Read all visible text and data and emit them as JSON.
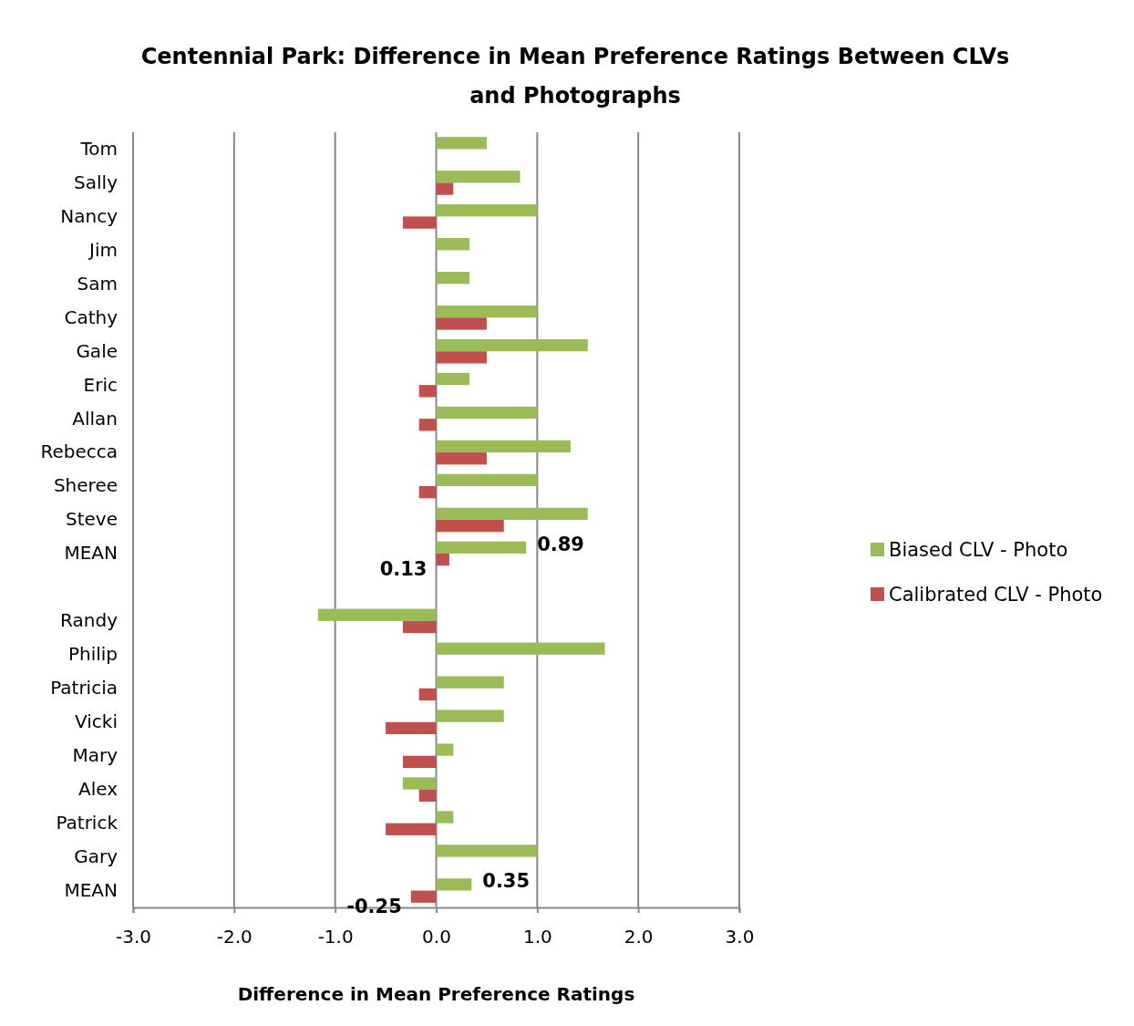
{
  "chart_data": {
    "type": "bar",
    "orientation": "horizontal",
    "title": "Centennial Park: Difference in Mean Preference Ratings Between CLVs and Photographs",
    "xlabel": "Difference in Mean Preference Ratings",
    "categories": [
      "Tom",
      "Sally",
      "Nancy",
      "Jim",
      "Sam",
      "Cathy",
      "Gale",
      "Eric",
      "Allan",
      "Rebecca",
      "Sheree",
      "Steve",
      "MEAN",
      null,
      "Randy",
      "Philip",
      "Patricia",
      "Vicki",
      "Mary",
      "Alex",
      "Patrick",
      "Gary",
      "MEAN"
    ],
    "series": [
      {
        "name": "Biased CLV - Photo",
        "color": "#9bbb59",
        "values": [
          0.5,
          0.83,
          1.0,
          0.33,
          0.33,
          1.0,
          1.5,
          0.33,
          1.0,
          1.33,
          1.0,
          1.5,
          0.89,
          null,
          -1.17,
          1.67,
          0.67,
          0.67,
          0.17,
          -0.33,
          0.17,
          1.0,
          0.35
        ],
        "value_labels": [
          null,
          null,
          null,
          null,
          null,
          null,
          null,
          null,
          null,
          null,
          null,
          null,
          "0.89",
          null,
          null,
          null,
          null,
          null,
          null,
          null,
          null,
          null,
          "0.35"
        ]
      },
      {
        "name": "Calibrated CLV - Photo",
        "color": "#c0504d",
        "values": [
          0,
          0.17,
          -0.33,
          0,
          0,
          0.5,
          0.5,
          -0.17,
          -0.17,
          0.5,
          -0.17,
          0.67,
          0.13,
          null,
          -0.33,
          0,
          -0.17,
          -0.5,
          -0.33,
          -0.17,
          -0.5,
          0,
          -0.25
        ],
        "value_labels": [
          null,
          null,
          null,
          null,
          null,
          null,
          null,
          null,
          null,
          null,
          null,
          null,
          "0.13",
          null,
          null,
          null,
          null,
          null,
          null,
          null,
          null,
          null,
          "-0.25"
        ]
      }
    ],
    "xlim": [
      -3,
      3
    ],
    "xticks": [
      {
        "value": -3,
        "label": "-3.0"
      },
      {
        "value": -2,
        "label": "-2.0"
      },
      {
        "value": -1,
        "label": "-1.0"
      },
      {
        "value": 0,
        "label": "0.0"
      },
      {
        "value": 1,
        "label": "1.0"
      },
      {
        "value": 2,
        "label": "2.0"
      },
      {
        "value": 3,
        "label": "3.0"
      }
    ],
    "grid": "x",
    "legend": "right"
  }
}
